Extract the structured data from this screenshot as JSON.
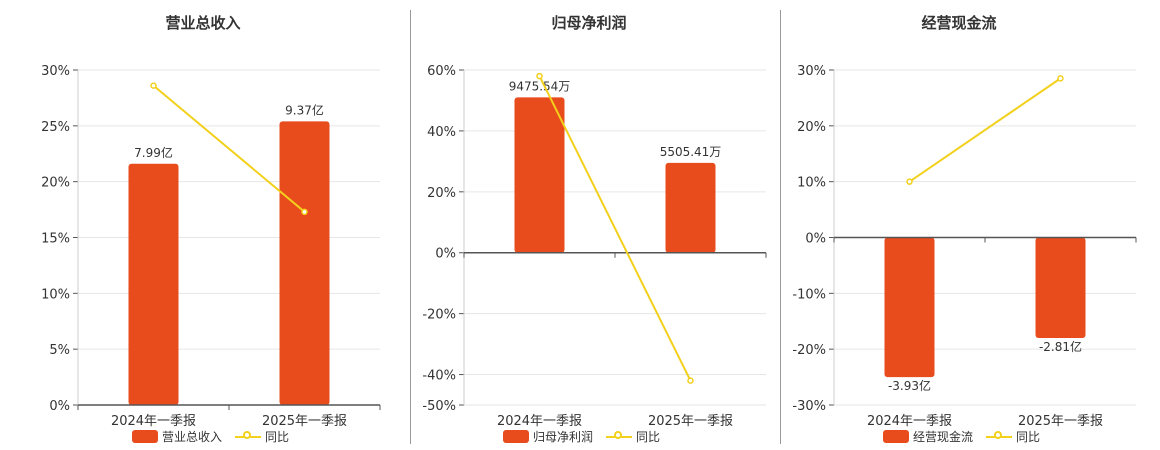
{
  "colors": {
    "bar": "#E84B1C",
    "line": "#F2D01C",
    "grid": "#e6e6e6",
    "axis": "#555555"
  },
  "chart_data": [
    {
      "type": "bar",
      "title": "营业总收入",
      "categories": [
        "2024年一季报",
        "2025年一季报"
      ],
      "series": [
        {
          "name": "营业总收入",
          "type": "bar",
          "values": [
            21.6,
            25.4
          ],
          "labels": [
            "7.99亿",
            "9.37亿"
          ]
        },
        {
          "name": "同比",
          "type": "line",
          "values": [
            28.6,
            17.3
          ]
        }
      ],
      "ylim": [
        0,
        30
      ],
      "yticks": [
        0,
        5,
        10,
        15,
        20,
        25,
        30
      ],
      "ytick_labels": [
        "0%",
        "5%",
        "10%",
        "15%",
        "20%",
        "25%",
        "30%"
      ],
      "grid": true,
      "legend": "bottom"
    },
    {
      "type": "bar",
      "title": "归母净利润",
      "categories": [
        "2024年一季报",
        "2025年一季报"
      ],
      "series": [
        {
          "name": "归母净利润",
          "type": "bar",
          "values": [
            51,
            29.5
          ],
          "labels": [
            "9475.54万",
            "5505.41万"
          ]
        },
        {
          "name": "同比",
          "type": "line",
          "values": [
            58,
            -42
          ]
        }
      ],
      "ylim": [
        -50,
        60
      ],
      "yticks": [
        -50,
        -40,
        -20,
        0,
        20,
        40,
        60
      ],
      "ytick_labels": [
        "-50%",
        "-40%",
        "-20%",
        "0%",
        "20%",
        "40%",
        "60%"
      ],
      "grid": true,
      "legend": "bottom"
    },
    {
      "type": "bar",
      "title": "经营现金流",
      "categories": [
        "2024年一季报",
        "2025年一季报"
      ],
      "series": [
        {
          "name": "经营现金流",
          "type": "bar",
          "values": [
            -25,
            -18
          ],
          "labels": [
            "-3.93亿",
            "-2.81亿"
          ]
        },
        {
          "name": "同比",
          "type": "line",
          "values": [
            10,
            28.5
          ]
        }
      ],
      "ylim": [
        -30,
        30
      ],
      "yticks": [
        -30,
        -20,
        -10,
        0,
        10,
        20,
        30
      ],
      "ytick_labels": [
        "-30%",
        "-20%",
        "-10%",
        "0%",
        "10%",
        "20%",
        "30%"
      ],
      "grid": true,
      "legend": "bottom"
    }
  ]
}
